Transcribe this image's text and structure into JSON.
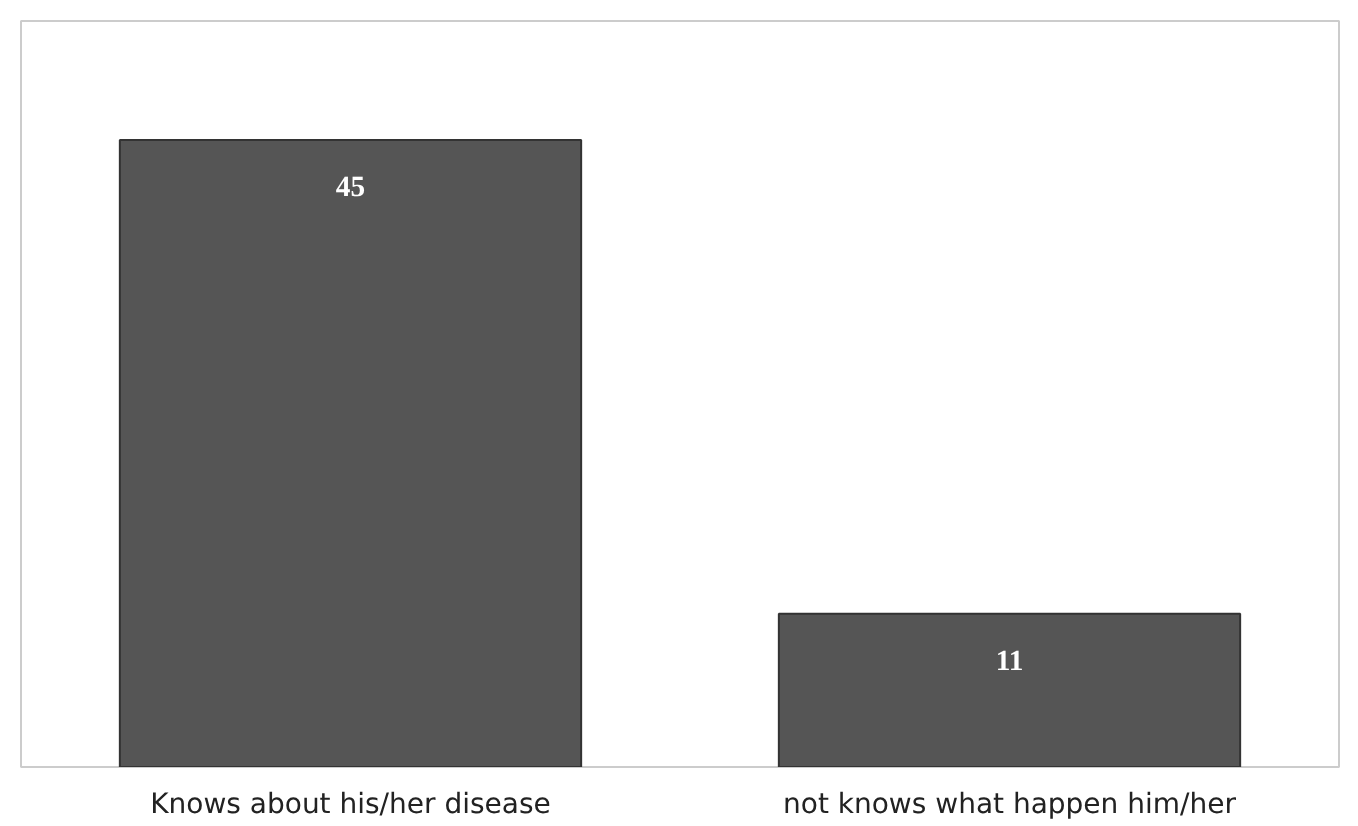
{
  "chart_data": {
    "type": "bar",
    "categories": [
      "Knows about his/her disease",
      "not knows what happen him/her"
    ],
    "values": [
      45,
      11
    ],
    "color": "#555555",
    "data_labels": true
  }
}
